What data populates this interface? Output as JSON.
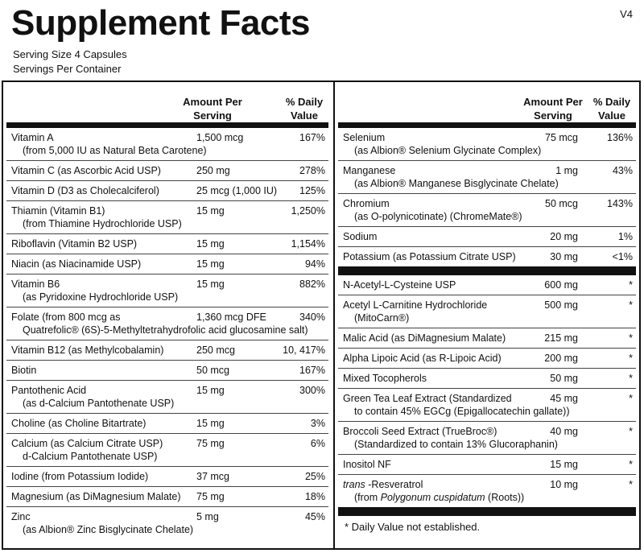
{
  "header": {
    "title": "Supplement Facts",
    "version": "V4",
    "serving_size": "Serving Size  4 Capsules",
    "servings_per_container": "Servings Per Container"
  },
  "left": {
    "header_amount": "Amount Per Serving",
    "header_dv": "% Daily Value",
    "rows": [
      {
        "name": "Vitamin A",
        "sub": "(from 5,000 IU as Natural Beta Carotene)",
        "amount": "1,500 mcg",
        "dv": "167%"
      },
      {
        "name": "Vitamin C (as Ascorbic Acid USP)",
        "amount": "250 mg",
        "dv": "278%"
      },
      {
        "name": "Vitamin D (D3 as Cholecalciferol)",
        "amount": "25 mcg (1,000 IU)",
        "dv": "125%"
      },
      {
        "name": "Thiamin (Vitamin B1)",
        "sub": "(from Thiamine Hydrochloride USP)",
        "amount": "15 mg",
        "dv": "1,250%"
      },
      {
        "name": "Riboflavin (Vitamin B2 USP)",
        "amount": "15 mg",
        "dv": "1,154%"
      },
      {
        "name": "Niacin (as Niacinamide USP)",
        "amount": "15 mg",
        "dv": "94%"
      },
      {
        "name": "Vitamin B6",
        "sub": "(as Pyridoxine Hydrochloride USP)",
        "amount": "15 mg",
        "dv": "882%"
      },
      {
        "name": "Folate (from 800 mcg as",
        "sub": "Quatrefolic® (6S)-5-Methyltetrahydrofolic acid glucosamine salt)",
        "amount": "1,360 mcg DFE",
        "dv": "340%"
      },
      {
        "name": "Vitamin B12 (as Methylcobalamin)",
        "amount": "250 mcg",
        "dv": "10, 417%"
      },
      {
        "name": "Biotin",
        "amount": "50 mcg",
        "dv": "167%"
      },
      {
        "name": "Pantothenic Acid",
        "sub": "(as d-Calcium Pantothenate USP)",
        "amount": "15 mg",
        "dv": "300%"
      },
      {
        "name": "Choline (as Choline Bitartrate)",
        "amount": "15 mg",
        "dv": "3%"
      },
      {
        "name": "Calcium (as Calcium Citrate USP)",
        "sub": "d-Calcium Pantothenate USP)",
        "amount": "75 mg",
        "dv": "6%"
      },
      {
        "name": "Iodine (from Potassium Iodide)",
        "amount": "37 mcg",
        "dv": "25%"
      },
      {
        "name": "Magnesium (as DiMagnesium Malate)",
        "amount": "75 mg",
        "dv": "18%"
      },
      {
        "name": "Zinc",
        "sub": "(as Albion® Zinc Bisglycinate Chelate)",
        "amount": "5 mg",
        "dv": "45%"
      }
    ]
  },
  "right": {
    "header_amount": "Amount Per Serving",
    "header_dv": "% Daily Value",
    "rows1": [
      {
        "name": "Selenium",
        "sub": "(as Albion® Selenium Glycinate Complex)",
        "amount": "75 mcg",
        "dv": "136%"
      },
      {
        "name": "Manganese",
        "sub": "(as Albion® Manganese Bisglycinate Chelate)",
        "amount": "1 mg",
        "dv": "43%"
      },
      {
        "name": "Chromium",
        "sub": "(as O-polynicotinate) (ChromeMate®)",
        "amount": "50 mcg",
        "dv": "143%"
      },
      {
        "name": "Sodium",
        "amount": "20 mg",
        "dv": "1%"
      },
      {
        "name": "Potassium (as Potassium Citrate USP)",
        "amount": "30 mg",
        "dv": "<1%"
      }
    ],
    "rows2": [
      {
        "name": "N-Acetyl-L-Cysteine USP",
        "amount": "600 mg",
        "dv": "*"
      },
      {
        "name": "Acetyl L-Carnitine Hydrochloride",
        "sub": "(MitoCarn®)",
        "amount": "500 mg",
        "dv": "*"
      },
      {
        "name": "Malic Acid (as DiMagnesium Malate)",
        "amount": "215 mg",
        "dv": "*"
      },
      {
        "name": "Alpha Lipoic Acid (as R-Lipoic Acid)",
        "amount": "200 mg",
        "dv": "*"
      },
      {
        "name": "Mixed Tocopherols",
        "amount": "50 mg",
        "dv": "*"
      },
      {
        "name": "Green Tea Leaf Extract (Standardized",
        "sub": "to contain 45% EGCg (Epigallocatechin gallate))",
        "amount": "45 mg",
        "dv": "*"
      },
      {
        "name": "Broccoli Seed Extract (TrueBroc®)",
        "sub": "(Standardized to contain 13% Glucoraphanin)",
        "amount": "40 mg",
        "dv": "*"
      },
      {
        "name": "Inositol NF",
        "amount": "15 mg",
        "dv": "*"
      },
      {
        "name": [
          {
            "text": "trans",
            "italic": true
          },
          {
            "text": " -Resveratrol"
          }
        ],
        "sub": [
          {
            "text": "(from "
          },
          {
            "text": "Polygonum cuspidatum",
            "italic": true
          },
          {
            "text": " (Roots))"
          }
        ],
        "amount": "10 mg",
        "dv": "*"
      }
    ],
    "footnote": "*  Daily Value not established."
  }
}
